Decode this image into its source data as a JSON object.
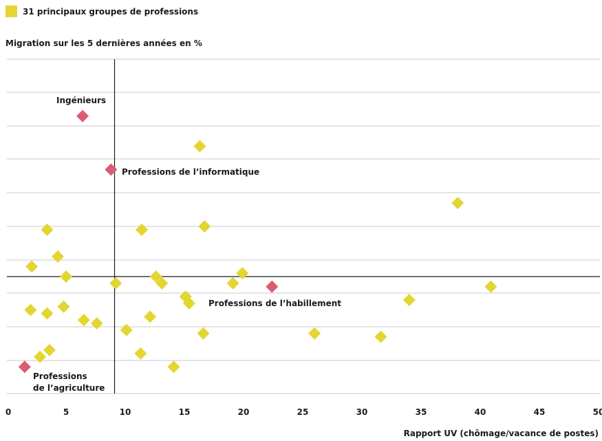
{
  "chart_data": {
    "type": "scatter",
    "legend": {
      "label": "31 principaux groupes de professions",
      "color": "#e3d532",
      "position": "top-left"
    },
    "title": "Migration sur les 5 dernières années en %",
    "xlabel": "Rapport UV (chômage/vacance de postes)",
    "ylabel": "",
    "xlim": [
      0,
      50
    ],
    "xticks": [
      0,
      5,
      10,
      15,
      20,
      25,
      30,
      35,
      40,
      45,
      50
    ],
    "grid": true,
    "reference_lines": {
      "x": 9.1,
      "y": 0
    },
    "colors": {
      "default": "#e3d532",
      "highlight": "#d95c73"
    },
    "points": [
      {
        "x": 6.4,
        "y": 4.8,
        "highlight": true,
        "label": "Ingénieurs"
      },
      {
        "x": 8.8,
        "y": 3.2,
        "highlight": true,
        "label": "Professions de l’informatique"
      },
      {
        "x": 22.4,
        "y": -0.3,
        "highlight": true,
        "label": "Professions de l’habillement"
      },
      {
        "x": 1.5,
        "y": -2.7,
        "highlight": true,
        "label": "Professions de la agriculture"
      },
      {
        "x": 16.3,
        "y": 3.9
      },
      {
        "x": 38.1,
        "y": 2.2
      },
      {
        "x": 3.4,
        "y": 1.4
      },
      {
        "x": 11.4,
        "y": 1.4
      },
      {
        "x": 16.7,
        "y": 1.5
      },
      {
        "x": 4.3,
        "y": 0.6
      },
      {
        "x": 2.1,
        "y": 0.3
      },
      {
        "x": 5.0,
        "y": 0.0
      },
      {
        "x": 9.2,
        "y": -0.2
      },
      {
        "x": 12.6,
        "y": 0.0
      },
      {
        "x": 13.1,
        "y": -0.2
      },
      {
        "x": 19.1,
        "y": -0.2
      },
      {
        "x": 19.9,
        "y": 0.1
      },
      {
        "x": 15.1,
        "y": -0.6
      },
      {
        "x": 15.4,
        "y": -0.8
      },
      {
        "x": 34.0,
        "y": -0.7
      },
      {
        "x": 40.9,
        "y": -0.3
      },
      {
        "x": 2.0,
        "y": -1.0
      },
      {
        "x": 3.4,
        "y": -1.1
      },
      {
        "x": 4.8,
        "y": -0.9
      },
      {
        "x": 6.5,
        "y": -1.3
      },
      {
        "x": 7.6,
        "y": -1.4
      },
      {
        "x": 12.1,
        "y": -1.2
      },
      {
        "x": 10.1,
        "y": -1.6
      },
      {
        "x": 16.6,
        "y": -1.7
      },
      {
        "x": 26.0,
        "y": -1.7
      },
      {
        "x": 31.6,
        "y": -1.8
      },
      {
        "x": 11.3,
        "y": -2.3
      },
      {
        "x": 3.6,
        "y": -2.2
      },
      {
        "x": 2.8,
        "y": -2.4
      },
      {
        "x": 14.1,
        "y": -2.7
      }
    ]
  },
  "annotations": [
    {
      "id": "ingenieurs",
      "lines": [
        "Ingénieurs"
      ]
    },
    {
      "id": "informatique",
      "lines": [
        "Professions de l’informatique"
      ]
    },
    {
      "id": "habillement",
      "lines": [
        "Professions de l’habillement"
      ]
    },
    {
      "id": "agriculture",
      "lines": [
        "Professions",
        "de l’agriculture"
      ]
    }
  ]
}
